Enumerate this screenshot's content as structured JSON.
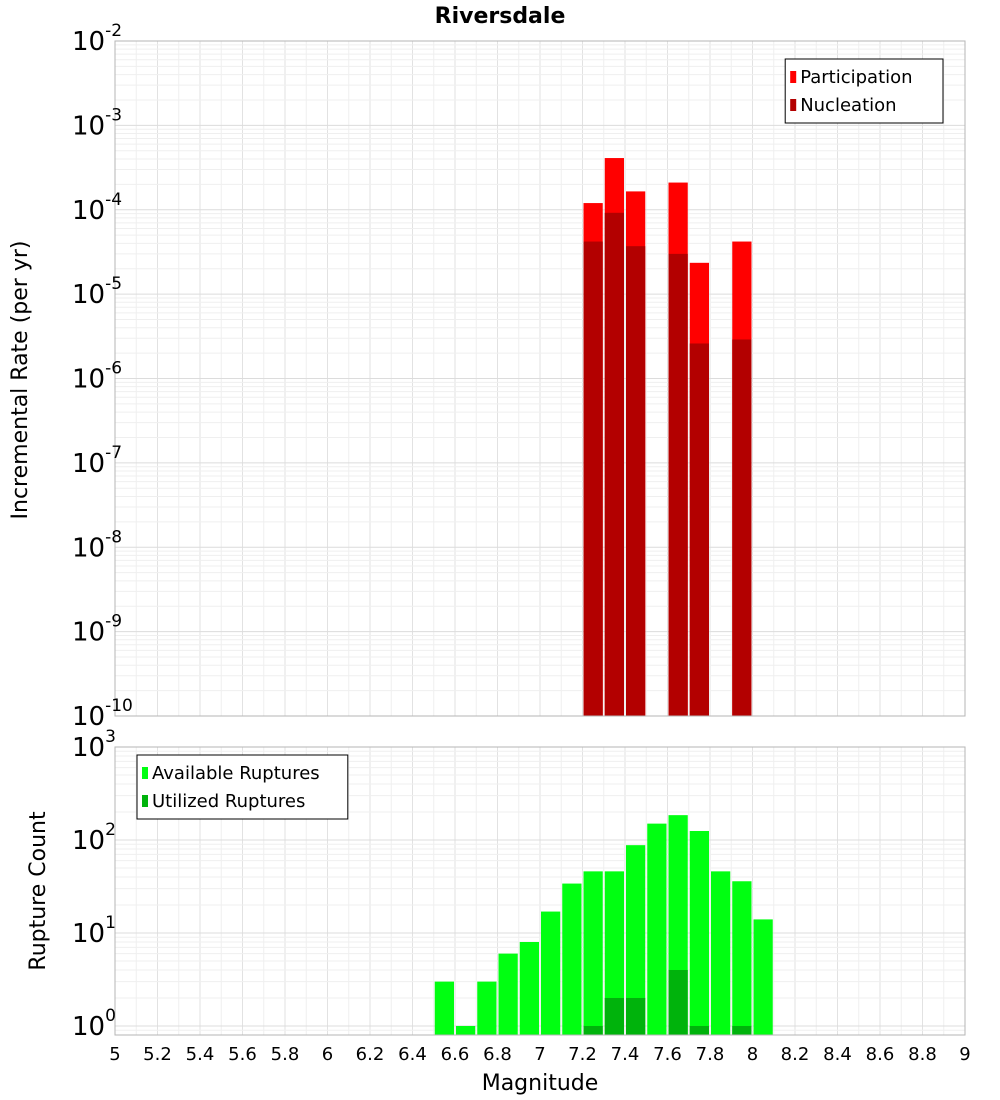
{
  "chart_data": [
    {
      "type": "bar",
      "title": "Riversdale",
      "xlabel": "",
      "ylabel": "Incremental Rate (per yr)",
      "xlim": [
        5,
        9
      ],
      "ylim": [
        1e-10,
        0.01
      ],
      "yscale": "log",
      "grid": true,
      "legend_position": "top-right",
      "y_ticks": [
        {
          "mantissa": "10",
          "exp": "-10",
          "value": 1e-10
        },
        {
          "mantissa": "10",
          "exp": "-9",
          "value": 1e-09
        },
        {
          "mantissa": "10",
          "exp": "-8",
          "value": 1e-08
        },
        {
          "mantissa": "10",
          "exp": "-7",
          "value": 1e-07
        },
        {
          "mantissa": "10",
          "exp": "-6",
          "value": 1e-06
        },
        {
          "mantissa": "10",
          "exp": "-5",
          "value": 1e-05
        },
        {
          "mantissa": "10",
          "exp": "-4",
          "value": 0.0001
        },
        {
          "mantissa": "10",
          "exp": "-3",
          "value": 0.001
        },
        {
          "mantissa": "10",
          "exp": "-2",
          "value": 0.01
        }
      ],
      "bar_width": 0.1,
      "series": [
        {
          "name": "Participation",
          "color": "#ff0000",
          "points": [
            {
              "x": 7.25,
              "y": 0.00012
            },
            {
              "x": 7.35,
              "y": 0.00041
            },
            {
              "x": 7.45,
              "y": 0.000165
            },
            {
              "x": 7.65,
              "y": 0.00021
            },
            {
              "x": 7.75,
              "y": 2.35e-05
            },
            {
              "x": 7.95,
              "y": 4.2e-05
            }
          ]
        },
        {
          "name": "Nucleation",
          "color": "#b30000",
          "points": [
            {
              "x": 7.25,
              "y": 4.2e-05
            },
            {
              "x": 7.35,
              "y": 9.2e-05
            },
            {
              "x": 7.45,
              "y": 3.7e-05
            },
            {
              "x": 7.65,
              "y": 3e-05
            },
            {
              "x": 7.75,
              "y": 2.6e-06
            },
            {
              "x": 7.95,
              "y": 2.9e-06
            }
          ]
        }
      ]
    },
    {
      "type": "bar",
      "title": "",
      "xlabel": "Magnitude",
      "ylabel": "Rupture Count",
      "xlim": [
        5,
        9
      ],
      "ylim": [
        0.8,
        1000
      ],
      "yscale": "log",
      "grid": true,
      "legend_position": "top-left",
      "x_ticks": [
        "5",
        "5.2",
        "5.4",
        "5.6",
        "5.8",
        "6",
        "6.2",
        "6.4",
        "6.6",
        "6.8",
        "7",
        "7.2",
        "7.4",
        "7.6",
        "7.8",
        "8",
        "8.2",
        "8.4",
        "8.6",
        "8.8",
        "9"
      ],
      "y_ticks": [
        {
          "mantissa": "10",
          "exp": "0",
          "value": 1
        },
        {
          "mantissa": "10",
          "exp": "1",
          "value": 10
        },
        {
          "mantissa": "10",
          "exp": "2",
          "value": 100
        },
        {
          "mantissa": "10",
          "exp": "3",
          "value": 1000
        }
      ],
      "bar_width": 0.1,
      "series": [
        {
          "name": "Available Ruptures",
          "color": "#00ff11",
          "points": [
            {
              "x": 6.55,
              "y": 3
            },
            {
              "x": 6.65,
              "y": 1
            },
            {
              "x": 6.75,
              "y": 3
            },
            {
              "x": 6.85,
              "y": 6
            },
            {
              "x": 6.95,
              "y": 8
            },
            {
              "x": 7.05,
              "y": 17
            },
            {
              "x": 7.15,
              "y": 34
            },
            {
              "x": 7.25,
              "y": 46
            },
            {
              "x": 7.35,
              "y": 46
            },
            {
              "x": 7.45,
              "y": 88
            },
            {
              "x": 7.55,
              "y": 150
            },
            {
              "x": 7.65,
              "y": 185
            },
            {
              "x": 7.75,
              "y": 125
            },
            {
              "x": 7.85,
              "y": 46
            },
            {
              "x": 7.95,
              "y": 36
            },
            {
              "x": 8.05,
              "y": 14
            }
          ]
        },
        {
          "name": "Utilized Ruptures",
          "color": "#00b30c",
          "points": [
            {
              "x": 7.25,
              "y": 1
            },
            {
              "x": 7.35,
              "y": 2
            },
            {
              "x": 7.45,
              "y": 2
            },
            {
              "x": 7.65,
              "y": 4
            },
            {
              "x": 7.75,
              "y": 1
            },
            {
              "x": 7.95,
              "y": 1
            }
          ]
        }
      ]
    }
  ]
}
